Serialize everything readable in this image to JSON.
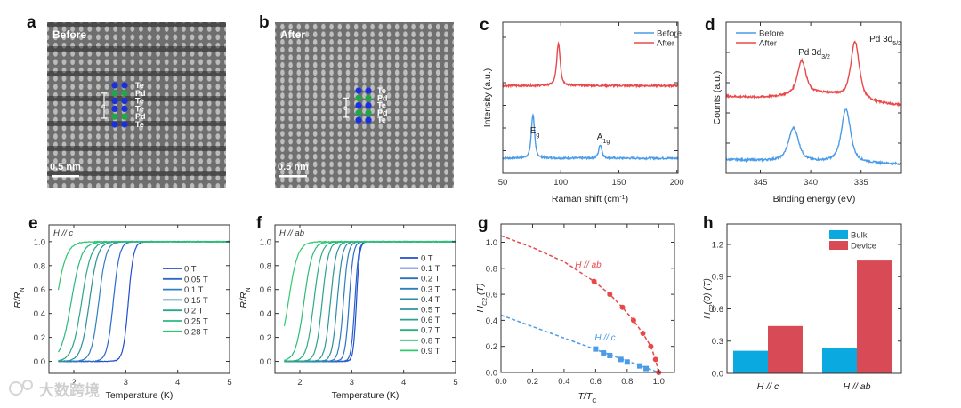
{
  "panel_letters": [
    "a",
    "b",
    "c",
    "d",
    "e",
    "f",
    "g",
    "h"
  ],
  "watermark": "大数跨境",
  "images": [
    {
      "title": "Before",
      "scale_bar": "0.5 nm",
      "arrow_label": "c",
      "atoms": [
        "Te",
        "Pd",
        "Te",
        "Te",
        "Pd",
        "Te"
      ],
      "atom_colors": [
        "#1a2fe0",
        "#1fa84a",
        "#1a2fe0",
        "#1a2fe0",
        "#1fa84a",
        "#1a2fe0"
      ]
    },
    {
      "title": "After",
      "scale_bar": "0.5 nm",
      "arrow_label": "c",
      "atoms": [
        "Te",
        "Pd",
        "Te",
        "Pd",
        "Te"
      ],
      "atom_colors": [
        "#1a2fe0",
        "#1fa84a",
        "#1a2fe0",
        "#1fa84a",
        "#1a2fe0"
      ]
    }
  ],
  "chart_data": [
    {
      "id": "c",
      "type": "line",
      "xlabel": "Raman shift (cm",
      "xlabel_sup": "-1",
      "xlabel_end": ")",
      "ylabel": "Intensity (a.u.)",
      "xlim": [
        50,
        201
      ],
      "ylim": [
        0,
        1
      ],
      "xticks": [
        50,
        100,
        150,
        200
      ],
      "xtick_labels": [
        "50",
        "100",
        "150",
        "200"
      ],
      "yticks": [
        0.15,
        0.3,
        0.45,
        0.6,
        0.75,
        0.9
      ],
      "ytick_labels": [],
      "series": [
        {
          "name": "Before",
          "color": "#4a9be8",
          "baseline": [
            0.1,
            0.1
          ],
          "peaks": [
            [
              76,
              0.29,
              1.8
            ],
            [
              134,
              0.09,
              1.8
            ]
          ]
        },
        {
          "name": "After",
          "color": "#e8484a",
          "baseline": [
            0.58,
            0.58
          ],
          "peaks": [
            [
              98,
              0.28,
              2.0
            ]
          ]
        }
      ],
      "annotations": [
        {
          "text": "E",
          "sub": "g"
        },
        {
          "text": "A",
          "sub": "1g"
        }
      ]
    },
    {
      "id": "d",
      "type": "line",
      "xlabel": "Binding energy (eV)",
      "ylabel": "Counts (a.u.)",
      "xlim": [
        348.4,
        331
      ],
      "ylim": [
        0,
        1
      ],
      "xticks": [
        345,
        340,
        335
      ],
      "xtick_labels": [
        "345",
        "340",
        "335"
      ],
      "yticks": [
        0.2,
        0.4,
        0.6,
        0.8
      ],
      "ytick_labels": [],
      "series": [
        {
          "name": "Before",
          "color": "#4a9be8",
          "baseline": [
            0.09,
            0.06
          ],
          "peaks": [
            [
              341.7,
              0.22,
              0.65
            ],
            [
              336.5,
              0.35,
              0.6
            ]
          ]
        },
        {
          "name": "After",
          "color": "#e8484a",
          "baseline": [
            0.51,
            0.45
          ],
          "peaks": [
            [
              340.9,
              0.22,
              0.55
            ],
            [
              335.6,
              0.38,
              0.55
            ]
          ]
        }
      ],
      "annotations": [
        {
          "text": "Pd 3d",
          "sub": "3/2"
        },
        {
          "text": "Pd 3d",
          "sub": "5/2"
        }
      ]
    },
    {
      "id": "e",
      "type": "line",
      "title": "H // c",
      "xlabel": "Temperature (K)",
      "ylabel": "R/R",
      "ylabel_sub": "N",
      "xlim": [
        1.52,
        5
      ],
      "ylim": [
        -0.1,
        1.14
      ],
      "xticks": [
        2,
        3,
        4,
        5
      ],
      "xtick_labels": [
        "2",
        "3",
        "4",
        "5"
      ],
      "yticks": [
        0,
        0.2,
        0.4,
        0.6,
        0.8,
        1.0
      ],
      "ytick_labels": [
        "0.0",
        "0.2",
        "0.4",
        "0.6",
        "0.8",
        "1.0"
      ],
      "series": [
        {
          "name": "0 T",
          "transition_midpoint_K": 3.05,
          "width_K": 0.05,
          "color": "#1f4fd0"
        },
        {
          "name": "0.05 T",
          "transition_midpoint_K": 2.76,
          "width_K": 0.06,
          "color": "#2a68cc"
        },
        {
          "name": "0.1 T",
          "transition_midpoint_K": 2.48,
          "width_K": 0.07,
          "color": "#2f80c0"
        },
        {
          "name": "0.15 T",
          "transition_midpoint_K": 2.3,
          "width_K": 0.08,
          "color": "#2a8f9a"
        },
        {
          "name": "0.2 T",
          "transition_midpoint_K": 2.15,
          "width_K": 0.09,
          "color": "#2aa58f"
        },
        {
          "name": "0.25 T",
          "transition_midpoint_K": 1.95,
          "width_K": 0.1,
          "color": "#2cb882"
        },
        {
          "name": "0.28 T",
          "transition_midpoint_K": 1.66,
          "width_K": 0.1,
          "color": "#2fc46a"
        }
      ]
    },
    {
      "id": "f",
      "type": "line",
      "title": "H // ab",
      "xlabel": "Temperature (K)",
      "ylabel": "R/R",
      "ylabel_sub": "N",
      "xlim": [
        1.52,
        5
      ],
      "ylim": [
        -0.1,
        1.14
      ],
      "xticks": [
        2,
        3,
        4,
        5
      ],
      "xtick_labels": [
        "2",
        "3",
        "4",
        "5"
      ],
      "yticks": [
        0,
        0.2,
        0.4,
        0.6,
        0.8,
        1.0
      ],
      "ytick_labels": [
        "0.0",
        "0.2",
        "0.4",
        "0.6",
        "0.8",
        "1.0"
      ],
      "series": [
        {
          "name": "0 T",
          "transition_midpoint_K": 3.09,
          "width_K": 0.03,
          "color": "#1f4fd0"
        },
        {
          "name": "0.1 T",
          "transition_midpoint_K": 3.06,
          "width_K": 0.035,
          "color": "#2660cc"
        },
        {
          "name": "0.2 T",
          "transition_midpoint_K": 2.95,
          "width_K": 0.04,
          "color": "#2a70c6"
        },
        {
          "name": "0.3 T",
          "transition_midpoint_K": 2.84,
          "width_K": 0.045,
          "color": "#2d7ebd"
        },
        {
          "name": "0.4 T",
          "transition_midpoint_K": 2.72,
          "width_K": 0.05,
          "color": "#2b8aa6"
        },
        {
          "name": "0.5 T",
          "transition_midpoint_K": 2.59,
          "width_K": 0.055,
          "color": "#2a979a"
        },
        {
          "name": "0.6 T",
          "transition_midpoint_K": 2.43,
          "width_K": 0.06,
          "color": "#2aa28e"
        },
        {
          "name": "0.7 T",
          "transition_midpoint_K": 2.27,
          "width_K": 0.07,
          "color": "#2bae80"
        },
        {
          "name": "0.8 T",
          "transition_midpoint_K": 2.08,
          "width_K": 0.08,
          "color": "#2dbb76"
        },
        {
          "name": "0.9 T",
          "transition_midpoint_K": 1.78,
          "width_K": 0.09,
          "color": "#30c86c"
        }
      ]
    },
    {
      "id": "g",
      "type": "scatter",
      "xlabel": "T/T",
      "xlabel_sub": "C",
      "ylabel": "H",
      "ylabel_sub": "C2",
      "ylabel_end": " (T)",
      "xlim": [
        0,
        1.1
      ],
      "ylim": [
        0,
        1.14
      ],
      "xticks": [
        0,
        0.2,
        0.4,
        0.6,
        0.8,
        1.0
      ],
      "xtick_labels": [
        "0.0",
        "0.2",
        "0.4",
        "0.6",
        "0.8",
        "1.0"
      ],
      "yticks": [
        0,
        0.2,
        0.4,
        0.6,
        0.8,
        1.0
      ],
      "ytick_labels": [
        "0.0",
        "0.2",
        "0.4",
        "0.6",
        "0.8",
        "1.0"
      ],
      "series": [
        {
          "name": "H // ab",
          "color": "#e8484a",
          "marker": "circle",
          "x": [
            0.59,
            0.69,
            0.77,
            0.84,
            0.9,
            0.95,
            0.98,
            1.0
          ],
          "y": [
            0.7,
            0.6,
            0.5,
            0.4,
            0.3,
            0.2,
            0.1,
            0.0
          ],
          "fit_x": [
            0,
            0.2,
            0.4,
            0.59,
            0.69,
            0.77,
            0.84,
            0.9,
            0.95,
            0.98,
            1.0
          ],
          "fit_y": [
            1.05,
            0.96,
            0.85,
            0.7,
            0.6,
            0.5,
            0.4,
            0.3,
            0.2,
            0.1,
            0.0
          ]
        },
        {
          "name": "H // c",
          "color": "#4a9be8",
          "marker": "square",
          "x": [
            0.6,
            0.65,
            0.69,
            0.76,
            0.8,
            0.88,
            0.92
          ],
          "y": [
            0.18,
            0.15,
            0.13,
            0.1,
            0.08,
            0.05,
            0.03
          ],
          "fit_x": [
            0,
            1.0
          ],
          "fit_y": [
            0.44,
            0.0
          ]
        }
      ]
    },
    {
      "id": "h",
      "type": "bar",
      "ylabel": "H",
      "ylabel_sub": "C2",
      "ylabel_end": "(0) (T)",
      "categories": [
        "H // c",
        "H // ab"
      ],
      "ylim": [
        0,
        1.39
      ],
      "yticks": [
        0,
        0.3,
        0.6,
        0.9,
        1.2
      ],
      "ytick_labels": [
        "0.0",
        "0.3",
        "0.6",
        "0.9",
        "1.2"
      ],
      "series": [
        {
          "name": "Bulk",
          "color": "#0aa9df",
          "values": [
            0.21,
            0.24
          ]
        },
        {
          "name": "Device",
          "color": "#d94a57",
          "values": [
            0.44,
            1.05
          ]
        }
      ]
    }
  ]
}
